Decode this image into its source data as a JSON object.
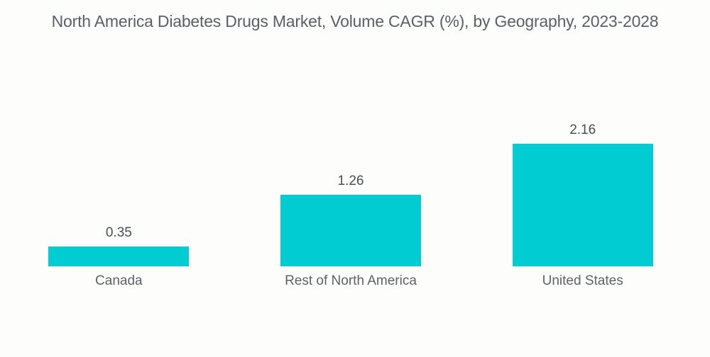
{
  "title": "North America Diabetes Drugs Market, Volume CAGR (%), by Geography, 2023-2028",
  "chart_data": {
    "type": "bar",
    "title": "North America Diabetes Drugs Market, Volume CAGR (%), by Geography, 2023-2028",
    "categories": [
      "Canada",
      "Rest of North America",
      "United States"
    ],
    "values": [
      0.35,
      1.26,
      2.16
    ],
    "data_labels": [
      "0.35",
      "1.26",
      "2.16"
    ],
    "xlabel": "",
    "ylabel": "",
    "ylim": [
      0,
      2.7
    ],
    "grid": false,
    "legend": false,
    "bar_color": "#00CCD2",
    "background_color": "#FDFDFC",
    "title_color": "#5A6066",
    "label_color": "#5C6268",
    "value_color": "#4A4F55"
  }
}
